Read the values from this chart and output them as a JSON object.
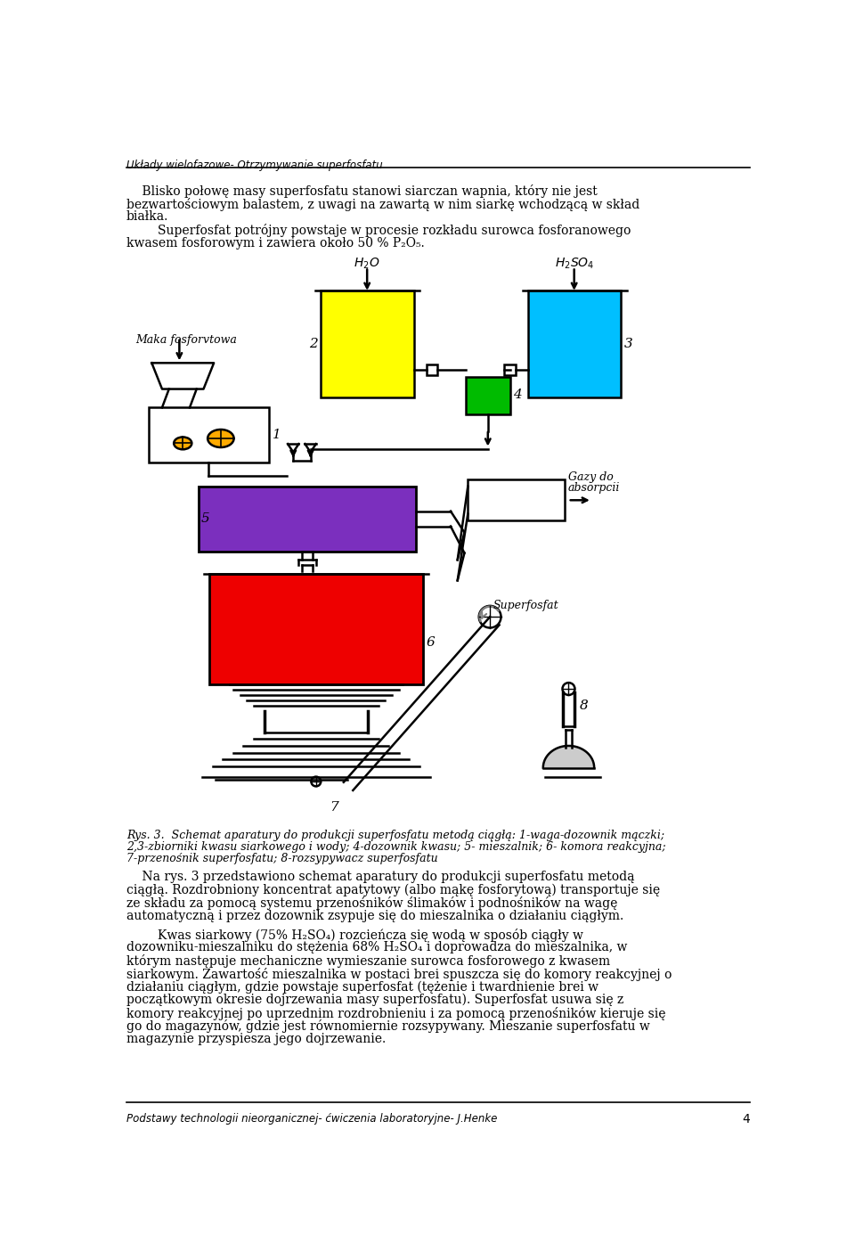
{
  "header_text": "Układy wielofazowe- Otrzymywanie superfosfatu",
  "footer_text": "Podstawy technologii nieorganicznej- ćwiczenia laboratoryjne- J.Henke",
  "page_number": "4",
  "bg_color": "#ffffff",
  "tank2_color": "#ffff00",
  "tank3_color": "#00bfff",
  "tank4_color": "#00bb00",
  "tank5_color": "#7b2fbe",
  "tank6_color": "#ee0000",
  "scale_color": "#ffaa00",
  "gray_color": "#cccccc"
}
